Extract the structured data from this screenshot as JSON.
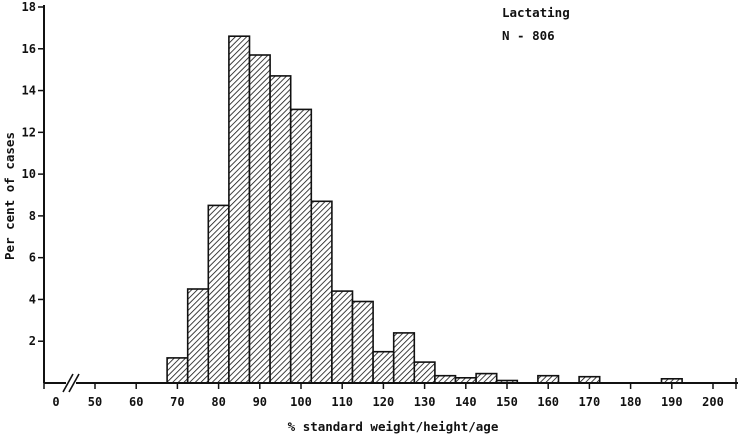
{
  "chart_data": {
    "type": "bar",
    "title": "",
    "xlabel": "% standard weight/height/age",
    "ylabel": "Per cent of cases",
    "annotation": {
      "group": "Lactating",
      "n_label": "N - 806"
    },
    "x_break": true,
    "x_ticks": [
      "0",
      "50",
      "60",
      "70",
      "80",
      "90",
      "100",
      "110",
      "120",
      "130",
      "140",
      "150",
      "160",
      "170",
      "180",
      "190",
      "200"
    ],
    "y_ticks": [
      "2",
      "4",
      "6",
      "8",
      "10",
      "12",
      "14",
      "16",
      "18"
    ],
    "ylim": [
      0,
      18
    ],
    "bin_width": 5,
    "bins": [
      {
        "start": 67.5,
        "value": 1.2
      },
      {
        "start": 72.5,
        "value": 4.5
      },
      {
        "start": 77.5,
        "value": 8.5
      },
      {
        "start": 82.5,
        "value": 16.6
      },
      {
        "start": 87.5,
        "value": 15.7
      },
      {
        "start": 92.5,
        "value": 14.7
      },
      {
        "start": 97.5,
        "value": 13.1
      },
      {
        "start": 102.5,
        "value": 8.7
      },
      {
        "start": 107.5,
        "value": 4.4
      },
      {
        "start": 112.5,
        "value": 3.9
      },
      {
        "start": 117.5,
        "value": 1.5
      },
      {
        "start": 122.5,
        "value": 2.4
      },
      {
        "start": 127.5,
        "value": 1.0
      },
      {
        "start": 132.5,
        "value": 0.35
      },
      {
        "start": 137.5,
        "value": 0.25
      },
      {
        "start": 142.5,
        "value": 0.45
      },
      {
        "start": 147.5,
        "value": 0.12
      },
      {
        "start": 157.5,
        "value": 0.35
      },
      {
        "start": 167.5,
        "value": 0.3
      },
      {
        "start": 187.5,
        "value": 0.2
      }
    ]
  }
}
